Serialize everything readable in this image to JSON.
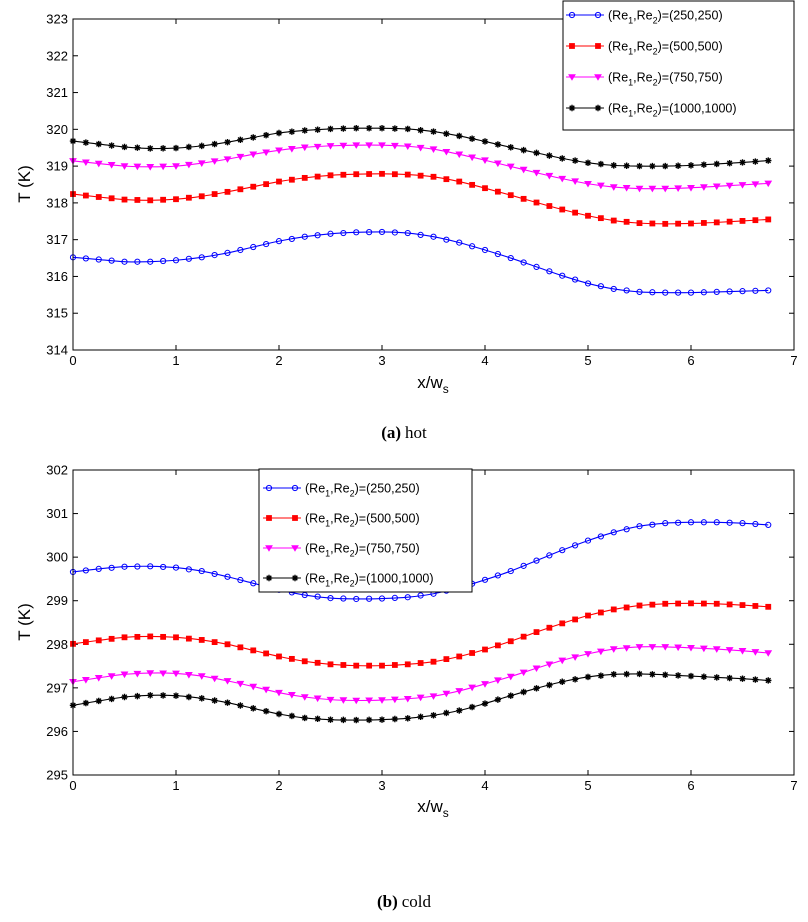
{
  "chart_data": [
    {
      "type": "line",
      "caption_letter": "(a)",
      "caption_text": "hot",
      "xlabel": "x/w",
      "xlabel_sub": "s",
      "ylabel": "T (K)",
      "xlim": [
        0,
        7
      ],
      "ylim": [
        314,
        323
      ],
      "xticks": [
        "0",
        "1",
        "2",
        "3",
        "4",
        "5",
        "6",
        "7"
      ],
      "yticks": [
        "314",
        "315",
        "316",
        "317",
        "318",
        "319",
        "320",
        "321",
        "322",
        "323"
      ],
      "legend_position": "top-right",
      "x": [
        0,
        0.25,
        0.5,
        0.75,
        1,
        1.25,
        1.5,
        1.75,
        2,
        2.25,
        2.5,
        2.75,
        3,
        3.25,
        3.5,
        3.75,
        4,
        4.25,
        4.5,
        4.75,
        5,
        5.25,
        5.5,
        5.75,
        6,
        6.25,
        6.5,
        6.75
      ],
      "series": [
        {
          "name": "(Re1,Re2)=(250,250)",
          "legend_pre": "(Re",
          "legend_mid": ",Re",
          "legend_post": ")=(250,250)",
          "color": "#0000ff",
          "marker": "circle",
          "values": [
            316.52,
            316.46,
            316.4,
            316.4,
            316.44,
            316.52,
            316.64,
            316.8,
            316.96,
            317.08,
            317.16,
            317.2,
            317.21,
            317.18,
            317.08,
            316.92,
            316.72,
            316.5,
            316.26,
            316.02,
            315.81,
            315.66,
            315.58,
            315.56,
            315.56,
            315.58,
            315.6,
            315.62
          ]
        },
        {
          "name": "(Re1,Re2)=(500,500)",
          "legend_pre": "(Re",
          "legend_mid": ",Re",
          "legend_post": ")=(500,500)",
          "color": "#ff0000",
          "marker": "square",
          "values": [
            318.24,
            318.16,
            318.09,
            318.07,
            318.1,
            318.18,
            318.3,
            318.44,
            318.58,
            318.68,
            318.75,
            318.78,
            318.79,
            318.77,
            318.71,
            318.58,
            318.4,
            318.21,
            318.01,
            317.82,
            317.65,
            317.52,
            317.45,
            317.43,
            317.44,
            317.47,
            317.51,
            317.55
          ]
        },
        {
          "name": "(Re1,Re2)=(750,750)",
          "legend_pre": "(Re",
          "legend_mid": ",Re",
          "legend_post": ")=(750,750)",
          "color": "#ff00ff",
          "marker": "triangle-down",
          "values": [
            319.14,
            319.07,
            319.0,
            318.98,
            319.0,
            319.08,
            319.19,
            319.32,
            319.43,
            319.51,
            319.55,
            319.57,
            319.57,
            319.54,
            319.46,
            319.32,
            319.16,
            318.99,
            318.82,
            318.66,
            318.52,
            318.43,
            318.39,
            318.39,
            318.41,
            318.45,
            318.49,
            318.53
          ]
        },
        {
          "name": "(Re1,Re2)=(1000,1000)",
          "legend_pre": "(Re",
          "legend_mid": ",Re",
          "legend_post": ")=(1000,1000)",
          "color": "#000000",
          "marker": "star",
          "values": [
            319.68,
            319.6,
            319.52,
            319.48,
            319.49,
            319.55,
            319.65,
            319.78,
            319.9,
            319.97,
            320.01,
            320.03,
            320.03,
            320.01,
            319.94,
            319.82,
            319.67,
            319.51,
            319.36,
            319.21,
            319.09,
            319.02,
            319.0,
            319.0,
            319.02,
            319.06,
            319.1,
            319.15
          ]
        }
      ]
    },
    {
      "type": "line",
      "caption_letter": "(b)",
      "caption_text": "cold",
      "xlabel": "x/w",
      "xlabel_sub": "s",
      "ylabel": "T (K)",
      "xlim": [
        0,
        7
      ],
      "ylim": [
        295,
        302
      ],
      "xticks": [
        "0",
        "1",
        "2",
        "3",
        "4",
        "5",
        "6",
        "7"
      ],
      "yticks": [
        "295",
        "296",
        "297",
        "298",
        "299",
        "300",
        "301",
        "302"
      ],
      "legend_position": "top-center",
      "x": [
        0,
        0.25,
        0.5,
        0.75,
        1,
        1.25,
        1.5,
        1.75,
        2,
        2.25,
        2.5,
        2.75,
        3,
        3.25,
        3.5,
        3.75,
        4,
        4.25,
        4.5,
        4.75,
        5,
        5.25,
        5.5,
        5.75,
        6,
        6.25,
        6.5,
        6.75
      ],
      "series": [
        {
          "name": "(Re1,Re2)=(250,250)",
          "legend_pre": "(Re",
          "legend_mid": ",Re",
          "legend_post": ")=(250,250)",
          "color": "#0000ff",
          "marker": "circle",
          "values": [
            299.66,
            299.73,
            299.78,
            299.79,
            299.76,
            299.68,
            299.55,
            299.4,
            299.25,
            299.13,
            299.06,
            299.04,
            299.05,
            299.08,
            299.16,
            299.3,
            299.48,
            299.68,
            299.92,
            300.16,
            300.38,
            300.57,
            300.71,
            300.78,
            300.8,
            300.8,
            300.78,
            300.74
          ]
        },
        {
          "name": "(Re1,Re2)=(500,500)",
          "legend_pre": "(Re",
          "legend_mid": ",Re",
          "legend_post": ")=(500,500)",
          "color": "#ff0000",
          "marker": "square",
          "values": [
            298.01,
            298.09,
            298.16,
            298.18,
            298.16,
            298.1,
            298.0,
            297.86,
            297.72,
            297.61,
            297.54,
            297.51,
            297.51,
            297.54,
            297.6,
            297.72,
            297.88,
            298.07,
            298.28,
            298.48,
            298.66,
            298.8,
            298.89,
            298.93,
            298.94,
            298.93,
            298.9,
            298.86
          ]
        },
        {
          "name": "(Re1,Re2)=(750,750)",
          "legend_pre": "(Re",
          "legend_mid": ",Re",
          "legend_post": ")=(750,750)",
          "color": "#ff00ff",
          "marker": "triangle-down",
          "values": [
            297.14,
            297.23,
            297.31,
            297.34,
            297.33,
            297.27,
            297.16,
            297.03,
            296.89,
            296.79,
            296.73,
            296.71,
            296.72,
            296.75,
            296.81,
            296.93,
            297.09,
            297.26,
            297.45,
            297.63,
            297.78,
            297.89,
            297.94,
            297.94,
            297.92,
            297.89,
            297.85,
            297.8
          ]
        },
        {
          "name": "(Re1,Re2)=(1000,1000)",
          "legend_pre": "(Re",
          "legend_mid": ",Re",
          "legend_post": ")=(1000,1000)",
          "color": "#000000",
          "marker": "star",
          "values": [
            296.6,
            296.7,
            296.79,
            296.83,
            296.82,
            296.76,
            296.66,
            296.53,
            296.4,
            296.31,
            296.27,
            296.26,
            296.27,
            296.3,
            296.37,
            296.48,
            296.64,
            296.82,
            296.99,
            297.14,
            297.25,
            297.31,
            297.32,
            297.3,
            297.27,
            297.24,
            297.21,
            297.17
          ]
        }
      ]
    }
  ]
}
